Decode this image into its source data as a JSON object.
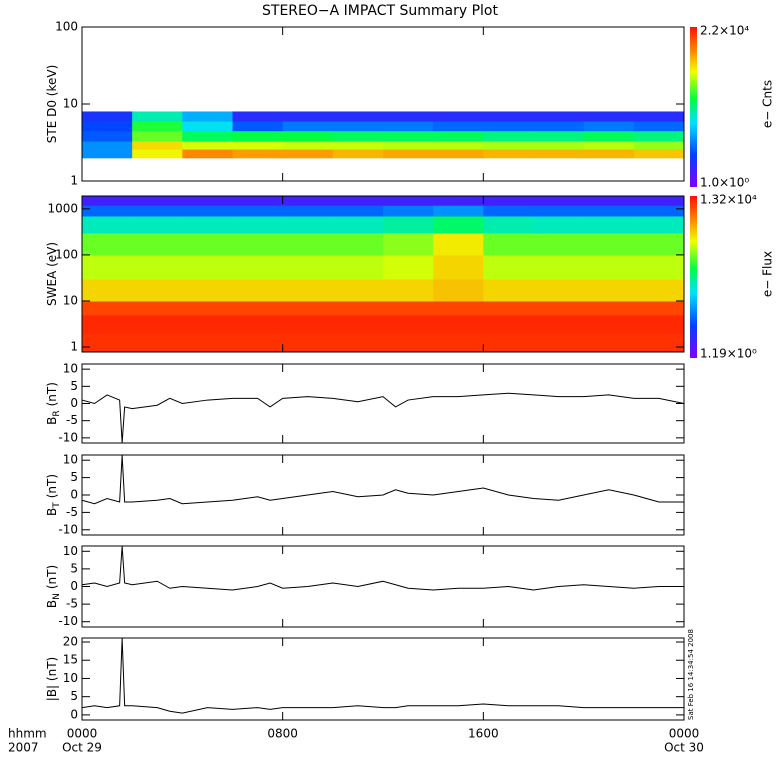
{
  "title": "STEREO−A IMPACT Summary Plot",
  "x_axis": {
    "title": "hhmm",
    "year": "2007",
    "ticks": [
      {
        "value": 0,
        "label": "0000",
        "date": "Oct 29"
      },
      {
        "value": 8,
        "label": "0800"
      },
      {
        "value": 16,
        "label": "1600"
      },
      {
        "value": 24,
        "label": "0000",
        "date": "Oct 30"
      }
    ],
    "xlim": [
      0,
      24
    ]
  },
  "timestamp": "Sat Feb 16 14:34:54 2008",
  "chart_data": [
    {
      "type": "heatmap",
      "ylabel": "STE D0 (keV)",
      "log_y": true,
      "ylim": [
        1,
        100
      ],
      "yticks": [
        1,
        10,
        100
      ],
      "x_edges": [
        0,
        2,
        4,
        6,
        8,
        10,
        12,
        14,
        16,
        18,
        20,
        22,
        24
      ],
      "y_edges": [
        2,
        2.6,
        3.3,
        4.5,
        6,
        8
      ],
      "z": [
        [
          20,
          1500,
          5000,
          4000,
          4000,
          3000,
          3500,
          3500,
          3000,
          3000,
          3000,
          2500
        ],
        [
          20,
          2000,
          1100,
          1100,
          1000,
          1000,
          900,
          900,
          800,
          800,
          900,
          700
        ],
        [
          10,
          500,
          200,
          240,
          240,
          200,
          200,
          200,
          150,
          150,
          200,
          150
        ],
        [
          8,
          300,
          60,
          10,
          15,
          15,
          15,
          12,
          12,
          12,
          15,
          12
        ],
        [
          5,
          100,
          30,
          4,
          4,
          4,
          4,
          4,
          4,
          4,
          4,
          4
        ]
      ],
      "clim": [
        1,
        22000
      ],
      "clim_labels": [
        "1.0×10⁰",
        "2.2×10⁴"
      ],
      "cbar_label": "e− Cnts"
    },
    {
      "type": "heatmap",
      "ylabel": "SWEA (eV)",
      "log_y": true,
      "ylim": [
        0.78,
        1900
      ],
      "yticks": [
        1,
        10,
        100,
        1000
      ],
      "x_edges": [
        0,
        2,
        4,
        6,
        8,
        10,
        12,
        14,
        16,
        18,
        20,
        22,
        24
      ],
      "y_edges": [
        0.78,
        2,
        5,
        10,
        30,
        100,
        300,
        700,
        1200,
        1900
      ],
      "z": [
        [
          9000,
          9000,
          9000,
          9000,
          9000,
          9000,
          9000,
          9000,
          9000,
          9000,
          9000,
          9000
        ],
        [
          10000,
          10000,
          10000,
          10000,
          10000,
          10000,
          10000,
          10000,
          10000,
          10000,
          10000,
          10000
        ],
        [
          7000,
          7000,
          7000,
          7000,
          7000,
          7000,
          7000,
          7000,
          7000,
          7000,
          7000,
          7000
        ],
        [
          1500,
          1500,
          1500,
          1500,
          1500,
          1500,
          1500,
          1800,
          1500,
          1500,
          1500,
          1500
        ],
        [
          700,
          700,
          700,
          700,
          700,
          700,
          800,
          1500,
          700,
          700,
          700,
          700
        ],
        [
          400,
          400,
          400,
          400,
          400,
          400,
          500,
          1200,
          400,
          400,
          400,
          400
        ],
        [
          80,
          80,
          80,
          80,
          80,
          80,
          100,
          150,
          90,
          80,
          80,
          80
        ],
        [
          12,
          12,
          12,
          12,
          12,
          12,
          15,
          20,
          12,
          12,
          12,
          12
        ],
        [
          3,
          3,
          3,
          3,
          3,
          3,
          3,
          3,
          3,
          3,
          3,
          3
        ]
      ],
      "clim": [
        1.19,
        13200
      ],
      "clim_labels": [
        "1.19×10⁰",
        "1.32×10⁴"
      ],
      "cbar_label": "e− Flux"
    },
    {
      "type": "line",
      "ylabel": "B",
      "ylabel_sub": "R",
      "ylabel_unit": "(nT)",
      "ylim": [
        -11.5,
        11.5
      ],
      "yticks": [
        -10,
        -5,
        0,
        5,
        10
      ],
      "color": "#000000",
      "x": [
        0,
        0.5,
        1,
        1.5,
        1.6,
        1.7,
        2,
        3,
        3.5,
        4,
        5,
        6,
        7,
        7.5,
        8,
        9,
        10,
        11,
        12,
        12.5,
        13,
        14,
        15,
        16,
        17,
        18,
        19,
        20,
        21,
        22,
        23,
        24
      ],
      "values": [
        1,
        0,
        2.5,
        1,
        -11.4,
        -1,
        -1.5,
        -0.5,
        1.5,
        0,
        1,
        1.5,
        1.5,
        -1,
        1.5,
        2,
        1.5,
        0.5,
        2,
        -1,
        1,
        2,
        2,
        2.5,
        3,
        2.5,
        2,
        2,
        2.5,
        1.5,
        1.5,
        0
      ]
    },
    {
      "type": "line",
      "ylabel": "B",
      "ylabel_sub": "T",
      "ylabel_unit": "(nT)",
      "ylim": [
        -11.5,
        11.5
      ],
      "yticks": [
        -10,
        -5,
        0,
        5,
        10
      ],
      "color": "#000000",
      "x": [
        0,
        0.5,
        1,
        1.5,
        1.6,
        1.7,
        2,
        3,
        3.5,
        4,
        5,
        6,
        7,
        7.5,
        8,
        9,
        10,
        11,
        12,
        12.5,
        13,
        14,
        15,
        16,
        17,
        18,
        19,
        20,
        21,
        22,
        23,
        24
      ],
      "values": [
        -1.5,
        -2.5,
        -1,
        -2,
        11.4,
        -2,
        -2,
        -1.5,
        -1,
        -2.5,
        -2,
        -1.5,
        -0.5,
        -1.5,
        -1,
        0,
        1,
        -0.5,
        0,
        1.5,
        0.5,
        0,
        1,
        2,
        0,
        -1,
        -1.5,
        0,
        1.5,
        0,
        -2,
        -2
      ]
    },
    {
      "type": "line",
      "ylabel": "B",
      "ylabel_sub": "N",
      "ylabel_unit": "(nT)",
      "ylim": [
        -11.5,
        11.5
      ],
      "yticks": [
        -10,
        -5,
        0,
        5,
        10
      ],
      "color": "#000000",
      "x": [
        0,
        0.5,
        1,
        1.5,
        1.6,
        1.7,
        2,
        3,
        3.5,
        4,
        5,
        6,
        7,
        7.5,
        8,
        9,
        10,
        11,
        12,
        12.5,
        13,
        14,
        15,
        16,
        17,
        18,
        19,
        20,
        21,
        22,
        23,
        24
      ],
      "values": [
        0.5,
        1,
        0,
        1,
        11.4,
        1,
        0.5,
        1.5,
        -0.5,
        0,
        -0.5,
        -1,
        0,
        1,
        -0.5,
        0,
        1,
        0,
        1.5,
        0.5,
        -0.5,
        -1,
        -0.5,
        -0.5,
        0,
        -1,
        0,
        0.5,
        0,
        -0.5,
        0,
        0
      ]
    },
    {
      "type": "line",
      "ylabel": "|B| (nT)",
      "ylim": [
        -1.4,
        21.1
      ],
      "yticks": [
        0,
        5,
        10,
        15,
        20
      ],
      "color": "#000000",
      "x": [
        0,
        0.5,
        1,
        1.5,
        1.6,
        1.7,
        2,
        3,
        3.5,
        4,
        5,
        6,
        7,
        7.5,
        8,
        9,
        10,
        11,
        12,
        12.5,
        13,
        14,
        15,
        16,
        17,
        18,
        19,
        20,
        21,
        22,
        23,
        24
      ],
      "values": [
        2,
        2.5,
        2,
        2.5,
        21,
        2.5,
        2.5,
        2,
        1,
        0.5,
        2,
        1.5,
        2,
        1.5,
        2,
        2,
        2,
        2.5,
        2,
        2,
        2.5,
        2.5,
        2.5,
        3,
        2.5,
        2.5,
        2.5,
        2,
        2,
        2,
        2,
        2
      ]
    }
  ]
}
